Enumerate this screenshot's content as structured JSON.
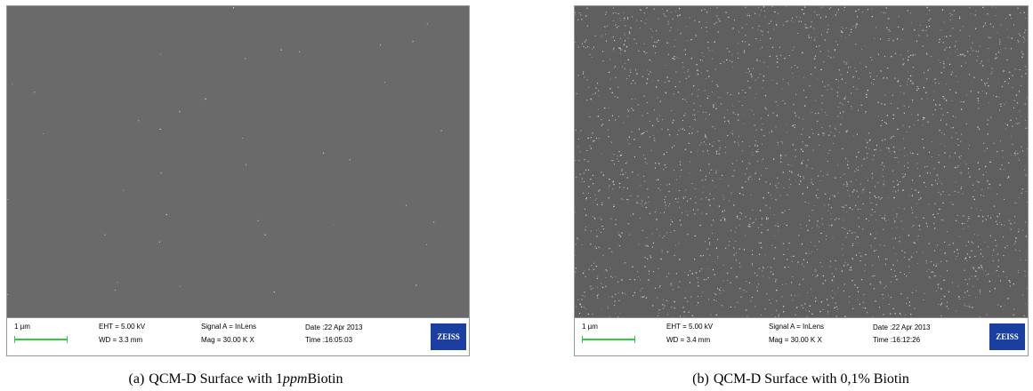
{
  "panels": [
    {
      "scale_label": "1 µm",
      "eht": "EHT = 5.00 kV",
      "wd": "WD = 3.3 mm",
      "signal": "Signal A = InLens",
      "mag": "Mag = 30.00 K X",
      "date": "Date :22 Apr 2013",
      "time": "Time :16:05:03",
      "logo": "ZEISS",
      "caption": {
        "label": "(a)",
        "text": "QCM-D Surface with 1",
        "italic": "ppm",
        "after": "Biotin"
      }
    },
    {
      "scale_label": "1 µm",
      "eht": "EHT = 5.00 kV",
      "wd": "WD = 3.4 mm",
      "signal": "Signal A = InLens",
      "mag": "Mag = 30.00 K X",
      "date": "Date :22 Apr 2013",
      "time": "Time :16:12:26",
      "logo": "ZEISS",
      "caption": {
        "label": "(b)",
        "text": "QCM-D Surface with 0,1% Biotin"
      }
    }
  ]
}
